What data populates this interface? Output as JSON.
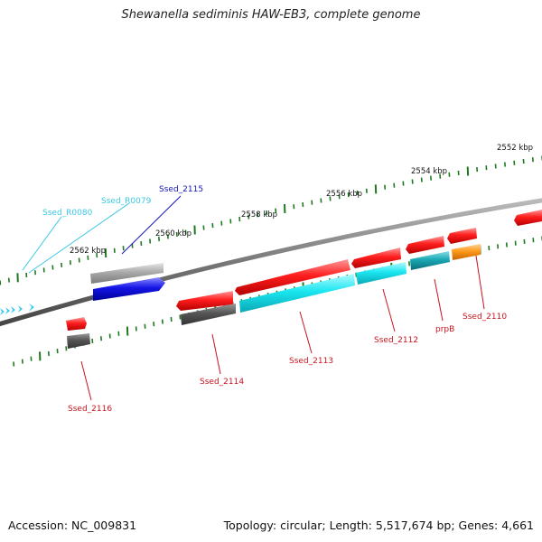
{
  "title": "Shewanella sediminis HAW-EB3, complete genome",
  "footer": {
    "accession": "Accession: NC_009831",
    "summary": "Topology: circular; Length: 5,517,674 bp; Genes: 4,661"
  },
  "colors": {
    "backbone": "#777777",
    "tick": "#1e7a1e",
    "red_gene": "#ff1e1e",
    "cyan_gene": "#1ae6f0",
    "teal_gene": "#1aa9b4",
    "orange_gene": "#ff9a1a",
    "blue_gene": "#1414e6",
    "grey_gene": "#555555",
    "light_grey_gene": "#aaaaaa",
    "label_red": "#c8141e",
    "label_blue": "#1414b4",
    "label_cyan": "#3cc8e6"
  },
  "ticks": {
    "kbp_2552": "2552 kbp",
    "kbp_2554": "2554 kbp",
    "kbp_2556": "2556 kbp",
    "kbp_2558": "2558 kbp",
    "kbp_2560": "2560 kbp",
    "kbp_2562": "2562 kbp"
  },
  "genes": {
    "ssed_2110": "Ssed_2110",
    "prpB": "prpB",
    "ssed_2112": "Ssed_2112",
    "ssed_2113": "Ssed_2113",
    "ssed_2114": "Ssed_2114",
    "ssed_2115": "Ssed_2115",
    "ssed_2116": "Ssed_2116",
    "ssed_R0079": "Ssed_R0079",
    "ssed_R0080": "Ssed_R0080"
  }
}
